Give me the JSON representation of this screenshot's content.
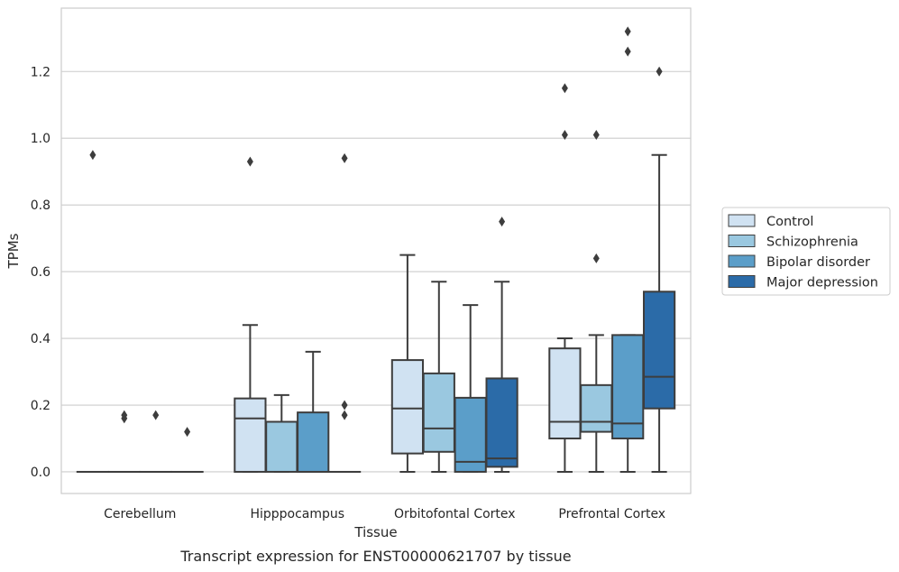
{
  "chart_data": {
    "type": "box",
    "title": "",
    "caption": "Transcript expression for ENST00000621707 by tissue",
    "xlabel": "Tissue",
    "ylabel": "TPMs",
    "ylim": [
      -0.065,
      1.39
    ],
    "yticks": [
      0.0,
      0.2,
      0.4,
      0.6,
      0.8,
      1.0,
      1.2
    ],
    "ytick_labels": [
      "0.0",
      "0.2",
      "0.4",
      "0.6",
      "0.8",
      "1.0",
      "1.2"
    ],
    "grid": "horizontal",
    "legend_position": "right",
    "categories": [
      "Cerebellum",
      "Hipppocampus",
      "Orbitofontal Cortex",
      "Prefrontal Cortex"
    ],
    "series": [
      {
        "name": "Control",
        "color": "#d0e2f2",
        "boxes": [
          {
            "whislo": 0,
            "q1": 0,
            "med": 0,
            "q3": 0,
            "whishi": 0,
            "fliers": [
              0.95
            ]
          },
          {
            "whislo": 0,
            "q1": 0,
            "med": 0.16,
            "q3": 0.22,
            "whishi": 0.44,
            "fliers": [
              0.93
            ]
          },
          {
            "whislo": 0,
            "q1": 0.055,
            "med": 0.19,
            "q3": 0.335,
            "whishi": 0.65,
            "fliers": []
          },
          {
            "whislo": 0,
            "q1": 0.1,
            "med": 0.15,
            "q3": 0.37,
            "whishi": 0.4,
            "fliers": [
              1.01,
              1.15
            ]
          }
        ]
      },
      {
        "name": "Schizophrenia",
        "color": "#9ac8e0",
        "boxes": [
          {
            "whislo": 0,
            "q1": 0,
            "med": 0,
            "q3": 0,
            "whishi": 0,
            "fliers": [
              0.16,
              0.17
            ]
          },
          {
            "whislo": 0,
            "q1": 0,
            "med": 0.15,
            "q3": 0.15,
            "whishi": 0.23,
            "fliers": []
          },
          {
            "whislo": 0,
            "q1": 0.06,
            "med": 0.13,
            "q3": 0.295,
            "whishi": 0.57,
            "fliers": []
          },
          {
            "whislo": 0,
            "q1": 0.12,
            "med": 0.15,
            "q3": 0.26,
            "whishi": 0.41,
            "fliers": [
              0.64,
              1.01
            ]
          }
        ]
      },
      {
        "name": "Bipolar disorder",
        "color": "#5b9ec9",
        "boxes": [
          {
            "whislo": 0,
            "q1": 0,
            "med": 0,
            "q3": 0,
            "whishi": 0,
            "fliers": [
              0.17
            ]
          },
          {
            "whislo": 0,
            "q1": 0,
            "med": 0,
            "q3": 0.178,
            "whishi": 0.36,
            "fliers": []
          },
          {
            "whislo": 0,
            "q1": 0,
            "med": 0.03,
            "q3": 0.222,
            "whishi": 0.5,
            "fliers": []
          },
          {
            "whislo": 0,
            "q1": 0.1,
            "med": 0.145,
            "q3": 0.41,
            "whishi": 0.41,
            "fliers": [
              1.26,
              1.32
            ]
          }
        ]
      },
      {
        "name": "Major depression",
        "color": "#2b6ba8",
        "boxes": [
          {
            "whislo": 0,
            "q1": 0,
            "med": 0,
            "q3": 0,
            "whishi": 0,
            "fliers": [
              0.12
            ]
          },
          {
            "whislo": 0,
            "q1": 0,
            "med": 0,
            "q3": 0,
            "whishi": 0,
            "fliers": [
              0.17,
              0.2,
              0.94
            ]
          },
          {
            "whislo": 0,
            "q1": 0.015,
            "med": 0.04,
            "q3": 0.28,
            "whishi": 0.57,
            "fliers": [
              0.75
            ]
          },
          {
            "whislo": 0,
            "q1": 0.19,
            "med": 0.285,
            "q3": 0.54,
            "whishi": 0.95,
            "fliers": [
              1.2
            ]
          }
        ]
      }
    ]
  }
}
